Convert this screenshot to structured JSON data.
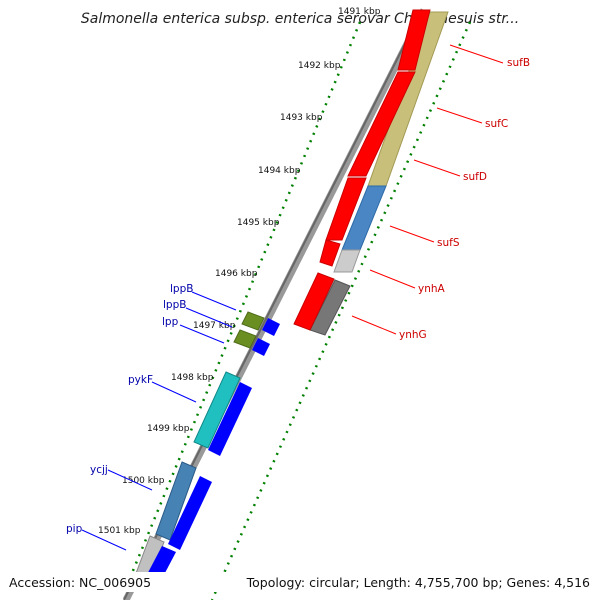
{
  "header": {
    "title": "Salmonella enterica subsp. enterica serovar Choleraesuis str..."
  },
  "footer": {
    "accession": "Accession: NC_006905",
    "summary": "Topology: circular; Length: 4,755,700 bp; Genes: 4,516"
  },
  "colors": {
    "forward_label": "#cc0000",
    "reverse_label": "#0000aa",
    "tick": "#008000",
    "backbone": "#777777"
  },
  "kbp_ticks": [
    "1491 kbp",
    "1492 kbp",
    "1493 kbp",
    "1494 kbp",
    "1495 kbp",
    "1496 kbp",
    "1497 kbp",
    "1498 kbp",
    "1499 kbp",
    "1500 kbp",
    "1501 kbp"
  ],
  "forward_genes": [
    {
      "name": "sufB",
      "color": "#ff0000"
    },
    {
      "name": "sufC",
      "color": "#ff0000"
    },
    {
      "name": "sufD",
      "color": "#ff0000"
    },
    {
      "name": "sufS",
      "color": "#ff0000"
    },
    {
      "name": "ynhA",
      "color": "#ff0000"
    },
    {
      "name": "ynhG",
      "color": "#ff0000"
    }
  ],
  "reverse_genes": [
    {
      "name": "lppB",
      "color": "#6b8e23"
    },
    {
      "name": "lppB",
      "color": "#6b8e23"
    },
    {
      "name": "lpp",
      "color": "#6b8e23"
    },
    {
      "name": "pykF",
      "color": "#20c0c0"
    },
    {
      "name": "ycjj",
      "color": "#4682b4"
    },
    {
      "name": "pip",
      "color": "#c0c0c0"
    }
  ]
}
